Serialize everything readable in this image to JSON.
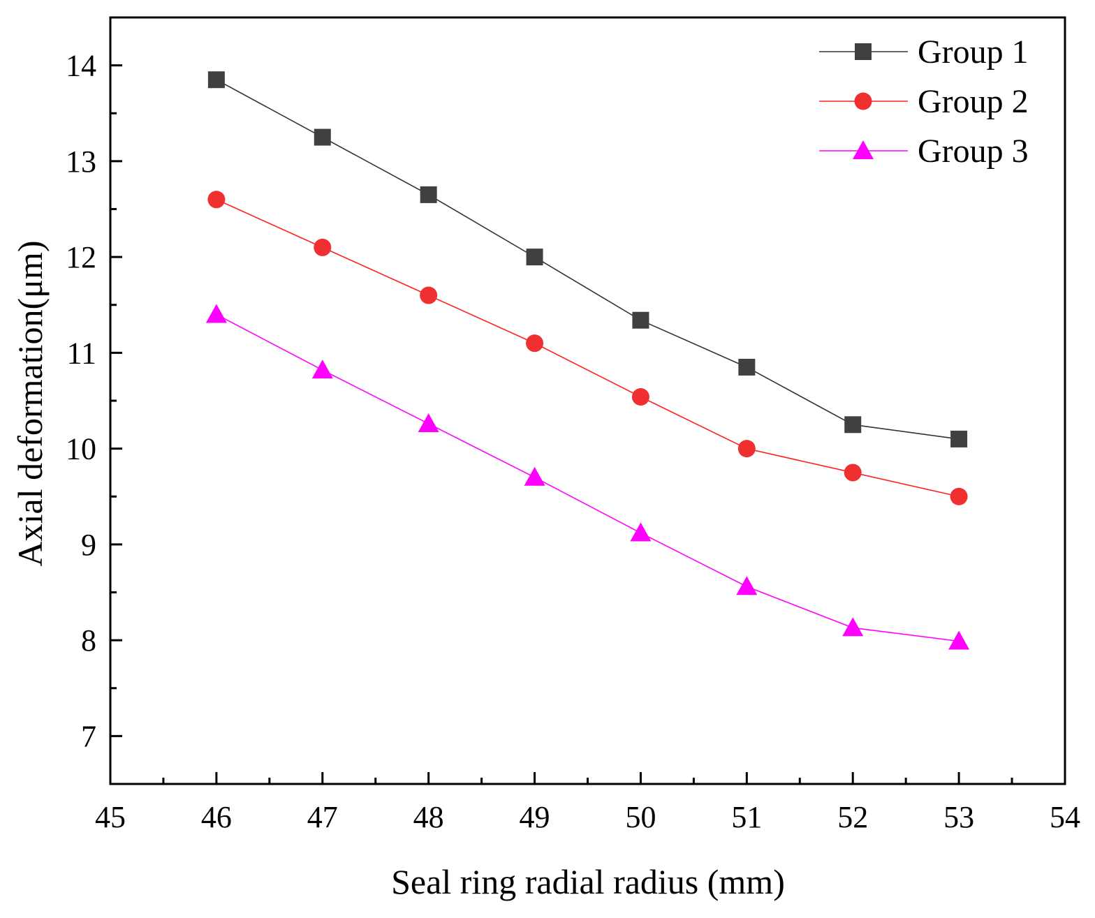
{
  "chart_data": {
    "type": "line",
    "title": "",
    "xlabel": "Seal ring radial radius (mm)",
    "ylabel": "Axial deformation(μm)",
    "xlim": [
      45,
      54
    ],
    "ylim": [
      6.5,
      14.5
    ],
    "x_ticks": [
      45,
      46,
      47,
      48,
      49,
      50,
      51,
      52,
      53,
      54
    ],
    "y_ticks": [
      7,
      8,
      9,
      10,
      11,
      12,
      13,
      14
    ],
    "x_tick_labels": [
      "45",
      "46",
      "47",
      "48",
      "49",
      "50",
      "51",
      "52",
      "53",
      "54"
    ],
    "y_tick_labels": [
      "7",
      "8",
      "9",
      "10",
      "11",
      "12",
      "13",
      "14"
    ],
    "grid": false,
    "legend_position": "top-right",
    "x": [
      46,
      47,
      48,
      49,
      50,
      51,
      52,
      53
    ],
    "series": [
      {
        "name": "Group 1",
        "marker": "square",
        "line_color": "#333333",
        "marker_color": "#404040",
        "values": [
          13.85,
          13.25,
          12.65,
          12.0,
          11.34,
          10.85,
          10.25,
          10.1
        ]
      },
      {
        "name": "Group 2",
        "marker": "circle",
        "line_color": "#ff2020",
        "marker_color": "#f03030",
        "values": [
          12.6,
          12.1,
          11.6,
          11.1,
          10.54,
          10.0,
          9.75,
          9.5
        ]
      },
      {
        "name": "Group 3",
        "marker": "triangle",
        "line_color": "#ff00ff",
        "marker_color": "#ff00ff",
        "values": [
          11.4,
          10.82,
          10.26,
          9.7,
          9.12,
          8.56,
          8.13,
          7.99
        ]
      }
    ]
  }
}
